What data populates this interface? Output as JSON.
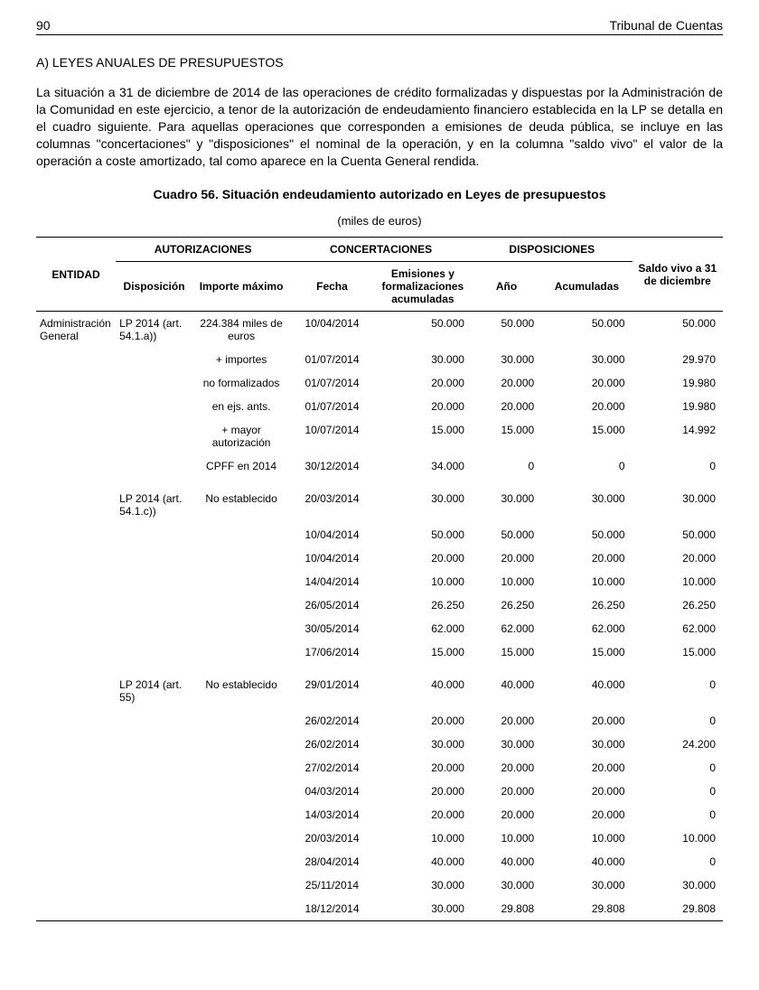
{
  "header": {
    "page_number": "90",
    "doc_title": "Tribunal de Cuentas"
  },
  "section_title": "A) LEYES ANUALES DE PRESUPUESTOS",
  "body_text": "La situación a 31 de diciembre de 2014 de las operaciones de crédito formalizadas y dispuestas por la Administración de la Comunidad en este ejercicio, a tenor de la autorización de endeudamiento financiero establecida en la LP se detalla en el cuadro siguiente. Para aquellas operaciones que corresponden a emisiones de deuda pública, se incluye en las columnas \"concertaciones\" y \"disposiciones\" el nominal de la operación, y en la columna \"saldo vivo\" el valor de la operación a coste amortizado, tal como aparece en la Cuenta General rendida.",
  "table": {
    "title": "Cuadro 56. Situación endeudamiento autorizado en Leyes de presupuestos",
    "subtitle": "(miles de euros)",
    "group_headers": {
      "entidad": "ENTIDAD",
      "autorizaciones": "AUTORIZACIONES",
      "concertaciones": "CONCERTACIONES",
      "disposiciones": "DISPOSICIONES",
      "saldo": "Saldo vivo a 31 de diciembre"
    },
    "sub_headers": {
      "disposicion": "Disposición",
      "importe_max": "Importe máximo",
      "fecha": "Fecha",
      "emisiones": "Emisiones y formalizaciones acumuladas",
      "ano": "Año",
      "acumuladas": "Acumuladas"
    },
    "entidad": "Administración General",
    "blocks": [
      {
        "disposicion": "LP 2014 (art. 54.1.a))",
        "importes": [
          "224.384 miles de euros",
          "+  importes",
          "no formalizados",
          "en ejs. ants.",
          "+ mayor autorización",
          "CPFF en 2014"
        ],
        "rows": [
          {
            "fecha": "10/04/2014",
            "emis": "50.000",
            "ano": "50.000",
            "acum": "50.000",
            "saldo": "50.000"
          },
          {
            "fecha": "01/07/2014",
            "emis": "30.000",
            "ano": "30.000",
            "acum": "30.000",
            "saldo": "29.970"
          },
          {
            "fecha": "01/07/2014",
            "emis": "20.000",
            "ano": "20.000",
            "acum": "20.000",
            "saldo": "19.980"
          },
          {
            "fecha": "01/07/2014",
            "emis": "20.000",
            "ano": "20.000",
            "acum": "20.000",
            "saldo": "19.980"
          },
          {
            "fecha": "10/07/2014",
            "emis": "15.000",
            "ano": "15.000",
            "acum": "15.000",
            "saldo": "14.992"
          },
          {
            "fecha": "30/12/2014",
            "emis": "34.000",
            "ano": "0",
            "acum": "0",
            "saldo": "0"
          }
        ]
      },
      {
        "disposicion": "LP 2014 (art. 54.1.c))",
        "importes": [
          "No establecido",
          "",
          "",
          "",
          "",
          "",
          ""
        ],
        "rows": [
          {
            "fecha": "20/03/2014",
            "emis": "30.000",
            "ano": "30.000",
            "acum": "30.000",
            "saldo": "30.000"
          },
          {
            "fecha": "10/04/2014",
            "emis": "50.000",
            "ano": "50.000",
            "acum": "50.000",
            "saldo": "50.000"
          },
          {
            "fecha": "10/04/2014",
            "emis": "20.000",
            "ano": "20.000",
            "acum": "20.000",
            "saldo": "20.000"
          },
          {
            "fecha": "14/04/2014",
            "emis": "10.000",
            "ano": "10.000",
            "acum": "10.000",
            "saldo": "10.000"
          },
          {
            "fecha": "26/05/2014",
            "emis": "26.250",
            "ano": "26.250",
            "acum": "26.250",
            "saldo": "26.250"
          },
          {
            "fecha": "30/05/2014",
            "emis": "62.000",
            "ano": "62.000",
            "acum": "62.000",
            "saldo": "62.000"
          },
          {
            "fecha": "17/06/2014",
            "emis": "15.000",
            "ano": "15.000",
            "acum": "15.000",
            "saldo": "15.000"
          }
        ]
      },
      {
        "disposicion": "LP 2014 (art. 55)",
        "importes": [
          "No establecido",
          "",
          "",
          "",
          "",
          "",
          "",
          "",
          "",
          ""
        ],
        "rows": [
          {
            "fecha": "29/01/2014",
            "emis": "40.000",
            "ano": "40.000",
            "acum": "40.000",
            "saldo": "0"
          },
          {
            "fecha": "26/02/2014",
            "emis": "20.000",
            "ano": "20.000",
            "acum": "20.000",
            "saldo": "0"
          },
          {
            "fecha": "26/02/2014",
            "emis": "30.000",
            "ano": "30.000",
            "acum": "30.000",
            "saldo": "24.200"
          },
          {
            "fecha": "27/02/2014",
            "emis": "20.000",
            "ano": "20.000",
            "acum": "20.000",
            "saldo": "0"
          },
          {
            "fecha": "04/03/2014",
            "emis": "20.000",
            "ano": "20.000",
            "acum": "20.000",
            "saldo": "0"
          },
          {
            "fecha": "14/03/2014",
            "emis": "20.000",
            "ano": "20.000",
            "acum": "20.000",
            "saldo": "0"
          },
          {
            "fecha": "20/03/2014",
            "emis": "10.000",
            "ano": "10.000",
            "acum": "10.000",
            "saldo": "10.000"
          },
          {
            "fecha": "28/04/2014",
            "emis": "40.000",
            "ano": "40.000",
            "acum": "40.000",
            "saldo": "0"
          },
          {
            "fecha": "25/11/2014",
            "emis": "30.000",
            "ano": "30.000",
            "acum": "30.000",
            "saldo": "30.000"
          },
          {
            "fecha": "18/12/2014",
            "emis": "30.000",
            "ano": "29.808",
            "acum": "29.808",
            "saldo": "29.808"
          }
        ]
      }
    ]
  }
}
